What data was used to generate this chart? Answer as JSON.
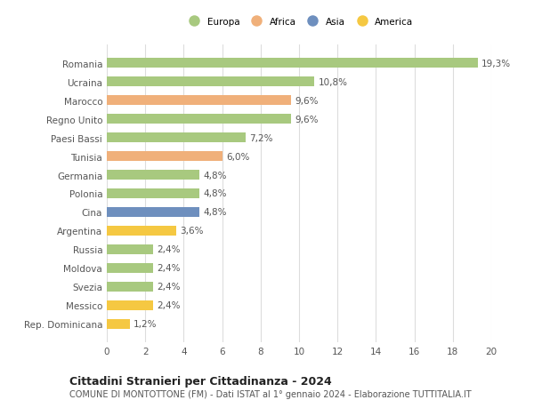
{
  "categories": [
    "Romania",
    "Ucraina",
    "Marocco",
    "Regno Unito",
    "Paesi Bassi",
    "Tunisia",
    "Germania",
    "Polonia",
    "Cina",
    "Argentina",
    "Russia",
    "Moldova",
    "Svezia",
    "Messico",
    "Rep. Dominicana"
  ],
  "values": [
    19.3,
    10.8,
    9.6,
    9.6,
    7.2,
    6.0,
    4.8,
    4.8,
    4.8,
    3.6,
    2.4,
    2.4,
    2.4,
    2.4,
    1.2
  ],
  "labels": [
    "19,3%",
    "10,8%",
    "9,6%",
    "9,6%",
    "7,2%",
    "6,0%",
    "4,8%",
    "4,8%",
    "4,8%",
    "3,6%",
    "2,4%",
    "2,4%",
    "2,4%",
    "2,4%",
    "1,2%"
  ],
  "colors": [
    "#a8c97f",
    "#a8c97f",
    "#f0b07a",
    "#a8c97f",
    "#a8c97f",
    "#f0b07a",
    "#a8c97f",
    "#a8c97f",
    "#6e8fbe",
    "#f5c842",
    "#a8c97f",
    "#a8c97f",
    "#a8c97f",
    "#f5c842",
    "#f5c842"
  ],
  "legend": {
    "Europa": "#a8c97f",
    "Africa": "#f0b07a",
    "Asia": "#6e8fbe",
    "America": "#f5c842"
  },
  "xlim": [
    0,
    20
  ],
  "xticks": [
    0,
    2,
    4,
    6,
    8,
    10,
    12,
    14,
    16,
    18,
    20
  ],
  "title": "Cittadini Stranieri per Cittadinanza - 2024",
  "subtitle": "COMUNE DI MONTOTTONE (FM) - Dati ISTAT al 1° gennaio 2024 - Elaborazione TUTTITALIA.IT",
  "background_color": "#ffffff",
  "grid_color": "#dddddd",
  "bar_height": 0.55,
  "label_fontsize": 7.5,
  "tick_fontsize": 7.5,
  "title_fontsize": 9,
  "subtitle_fontsize": 7
}
